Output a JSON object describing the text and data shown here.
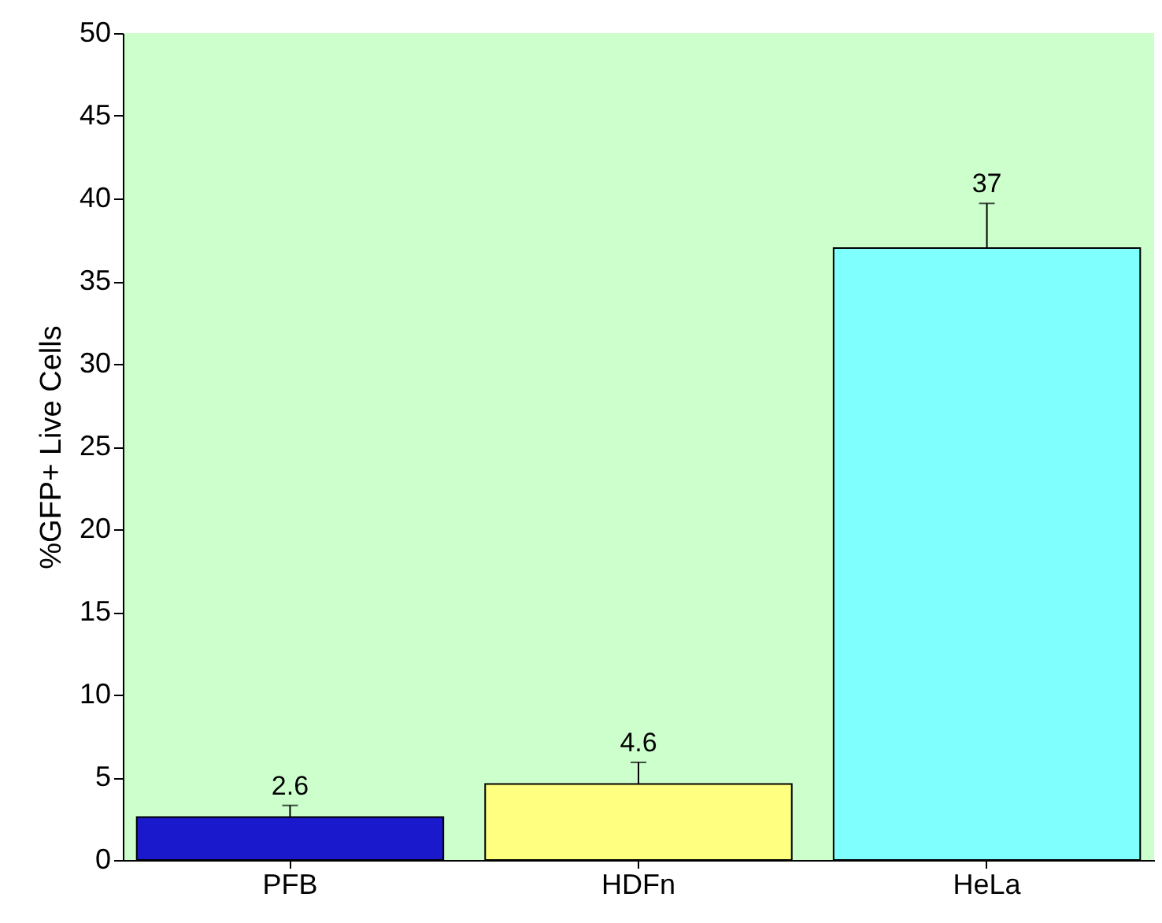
{
  "chart_data": {
    "type": "bar",
    "ylabel": "%GFP+ Live Cells",
    "categories": [
      "PFB",
      "HDFn",
      "HeLa"
    ],
    "values": [
      2.6,
      4.6,
      37
    ],
    "colors": [
      "#1a1acc",
      "#ffff80",
      "#80ffff"
    ],
    "errors": [
      [
        2.6,
        3.3
      ],
      [
        4.6,
        5.9
      ],
      [
        37,
        39.7
      ]
    ],
    "data_labels": true,
    "ylim": [
      0,
      50
    ],
    "yticks": [
      0,
      5,
      10,
      15,
      20,
      25,
      30,
      35,
      40,
      45,
      50
    ],
    "grid": false
  }
}
